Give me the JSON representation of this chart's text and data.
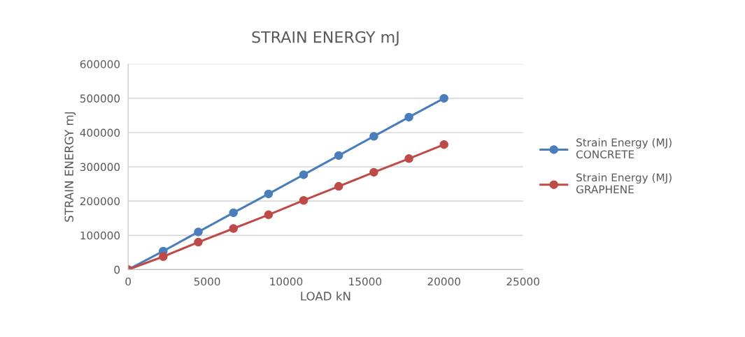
{
  "chart_data": {
    "type": "line",
    "title": "STRAIN ENERGY mJ",
    "xlabel": "LOAD kN",
    "ylabel": "STRAIN ENERGY mJ",
    "x": [
      0,
      2222,
      4444,
      6667,
      8889,
      11111,
      13333,
      15556,
      17778,
      20000
    ],
    "series": [
      {
        "name": "Strain Energy (MJ)\nCONCRETE",
        "color": "#4a7ebb",
        "values": [
          0,
          54000,
          110000,
          166000,
          221000,
          277000,
          333000,
          389000,
          445000,
          500000
        ]
      },
      {
        "name": "Strain Energy (MJ)\nGRAPHENE",
        "color": "#be4b48",
        "values": [
          0,
          38000,
          80000,
          120000,
          160000,
          202000,
          243000,
          284000,
          324000,
          365000
        ]
      }
    ],
    "xlim": [
      0,
      25000
    ],
    "xticks": [
      0,
      5000,
      10000,
      15000,
      20000,
      25000
    ],
    "ylim": [
      0,
      600000
    ],
    "yticks": [
      0,
      100000,
      200000,
      300000,
      400000,
      500000,
      600000
    ],
    "grid": "y",
    "legend": "right",
    "marker": "circle"
  }
}
